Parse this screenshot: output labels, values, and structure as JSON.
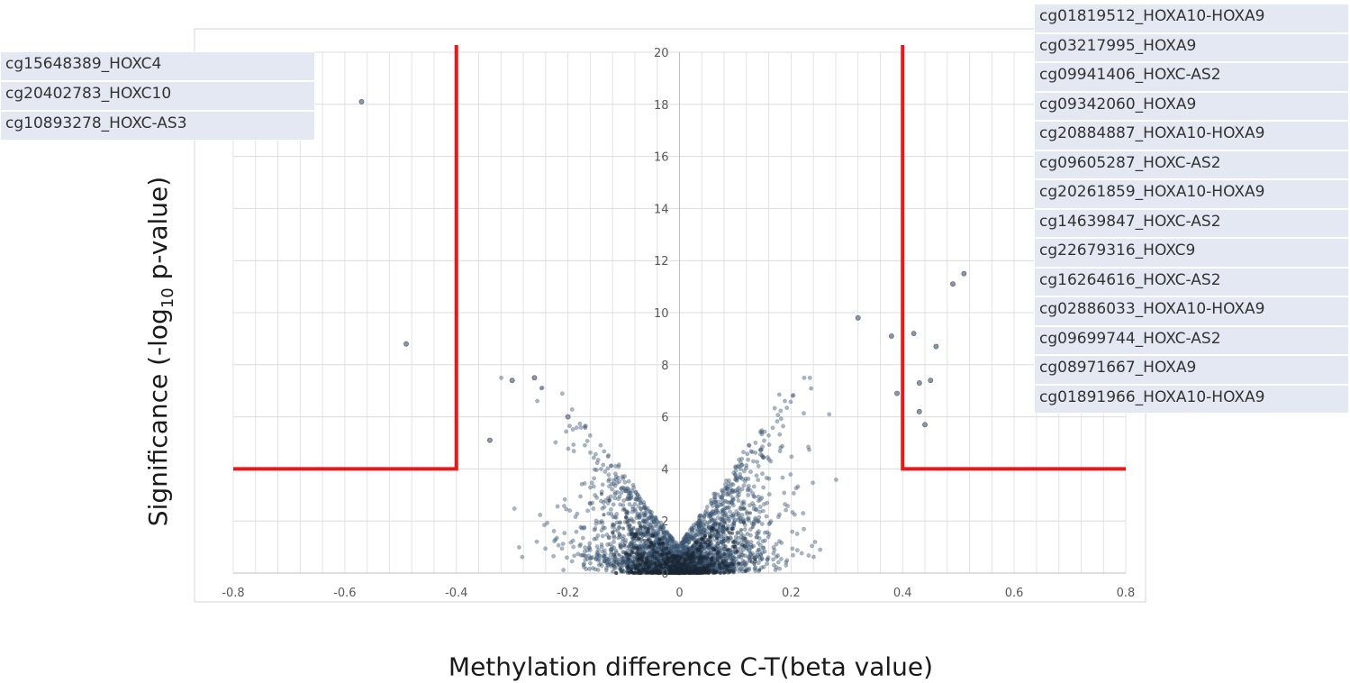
{
  "chart_data": {
    "type": "scatter",
    "title": "",
    "xlabel": "Methylation difference C-T(beta value)",
    "ylabel": {
      "prefix": "Significance (-log",
      "sub": "10",
      "suffix": " p-value)"
    },
    "xlim": [
      -0.8,
      0.8
    ],
    "ylim": [
      0,
      20
    ],
    "xticks": [
      "-0.8",
      "-0.6",
      "-0.4",
      "-0.2",
      "0",
      "0.2",
      "0.4",
      "0.6",
      "0.8"
    ],
    "yticks": [
      "0",
      "2",
      "4",
      "6",
      "8",
      "10",
      "12",
      "14",
      "16",
      "18",
      "20"
    ],
    "grid": true,
    "point_color": "#3d5a78",
    "threshold_color": "#e31a1c",
    "thresholds": {
      "x_low": -0.4,
      "x_high": 0.4,
      "y": 4
    },
    "highlighted_points": [
      {
        "x": -0.57,
        "y": 18.1
      },
      {
        "x": -0.49,
        "y": 8.8
      },
      {
        "x": 0.51,
        "y": 11.5
      },
      {
        "x": 0.49,
        "y": 11.1
      },
      {
        "x": 0.42,
        "y": 9.2
      },
      {
        "x": 0.38,
        "y": 9.1
      },
      {
        "x": 0.32,
        "y": 9.8
      },
      {
        "x": 0.46,
        "y": 8.7
      },
      {
        "x": 0.43,
        "y": 6.2
      },
      {
        "x": 0.45,
        "y": 7.4
      },
      {
        "x": 0.44,
        "y": 5.7
      },
      {
        "x": 0.43,
        "y": 7.3
      },
      {
        "x": 0.39,
        "y": 6.9
      },
      {
        "x": -0.34,
        "y": 5.1
      },
      {
        "x": -0.3,
        "y": 7.4
      },
      {
        "x": -0.26,
        "y": 7.5
      },
      {
        "x": -0.2,
        "y": 6.0
      }
    ],
    "labels_left": [
      "cg15648389_HOXC4",
      "cg20402783_HOXC10",
      "cg10893278_HOXC-AS3"
    ],
    "labels_right": [
      "cg01819512_HOXA10-HOXA9",
      "cg03217995_HOXA9",
      "cg09941406_HOXC-AS2",
      "cg09342060_HOXA9",
      "cg20884887_HOXA10-HOXA9",
      "cg09605287_HOXC-AS2",
      "cg20261859_HOXA10-HOXA9",
      "cg14639847_HOXC-AS2",
      "cg22679316_HOXC9",
      "cg16264616_HOXC-AS2",
      "cg02886033_HOXA10-HOXA9",
      "cg09699744_HOXC-AS2",
      "cg08971667_HOXA9",
      "cg01891966_HOXA10-HOXA9"
    ]
  }
}
